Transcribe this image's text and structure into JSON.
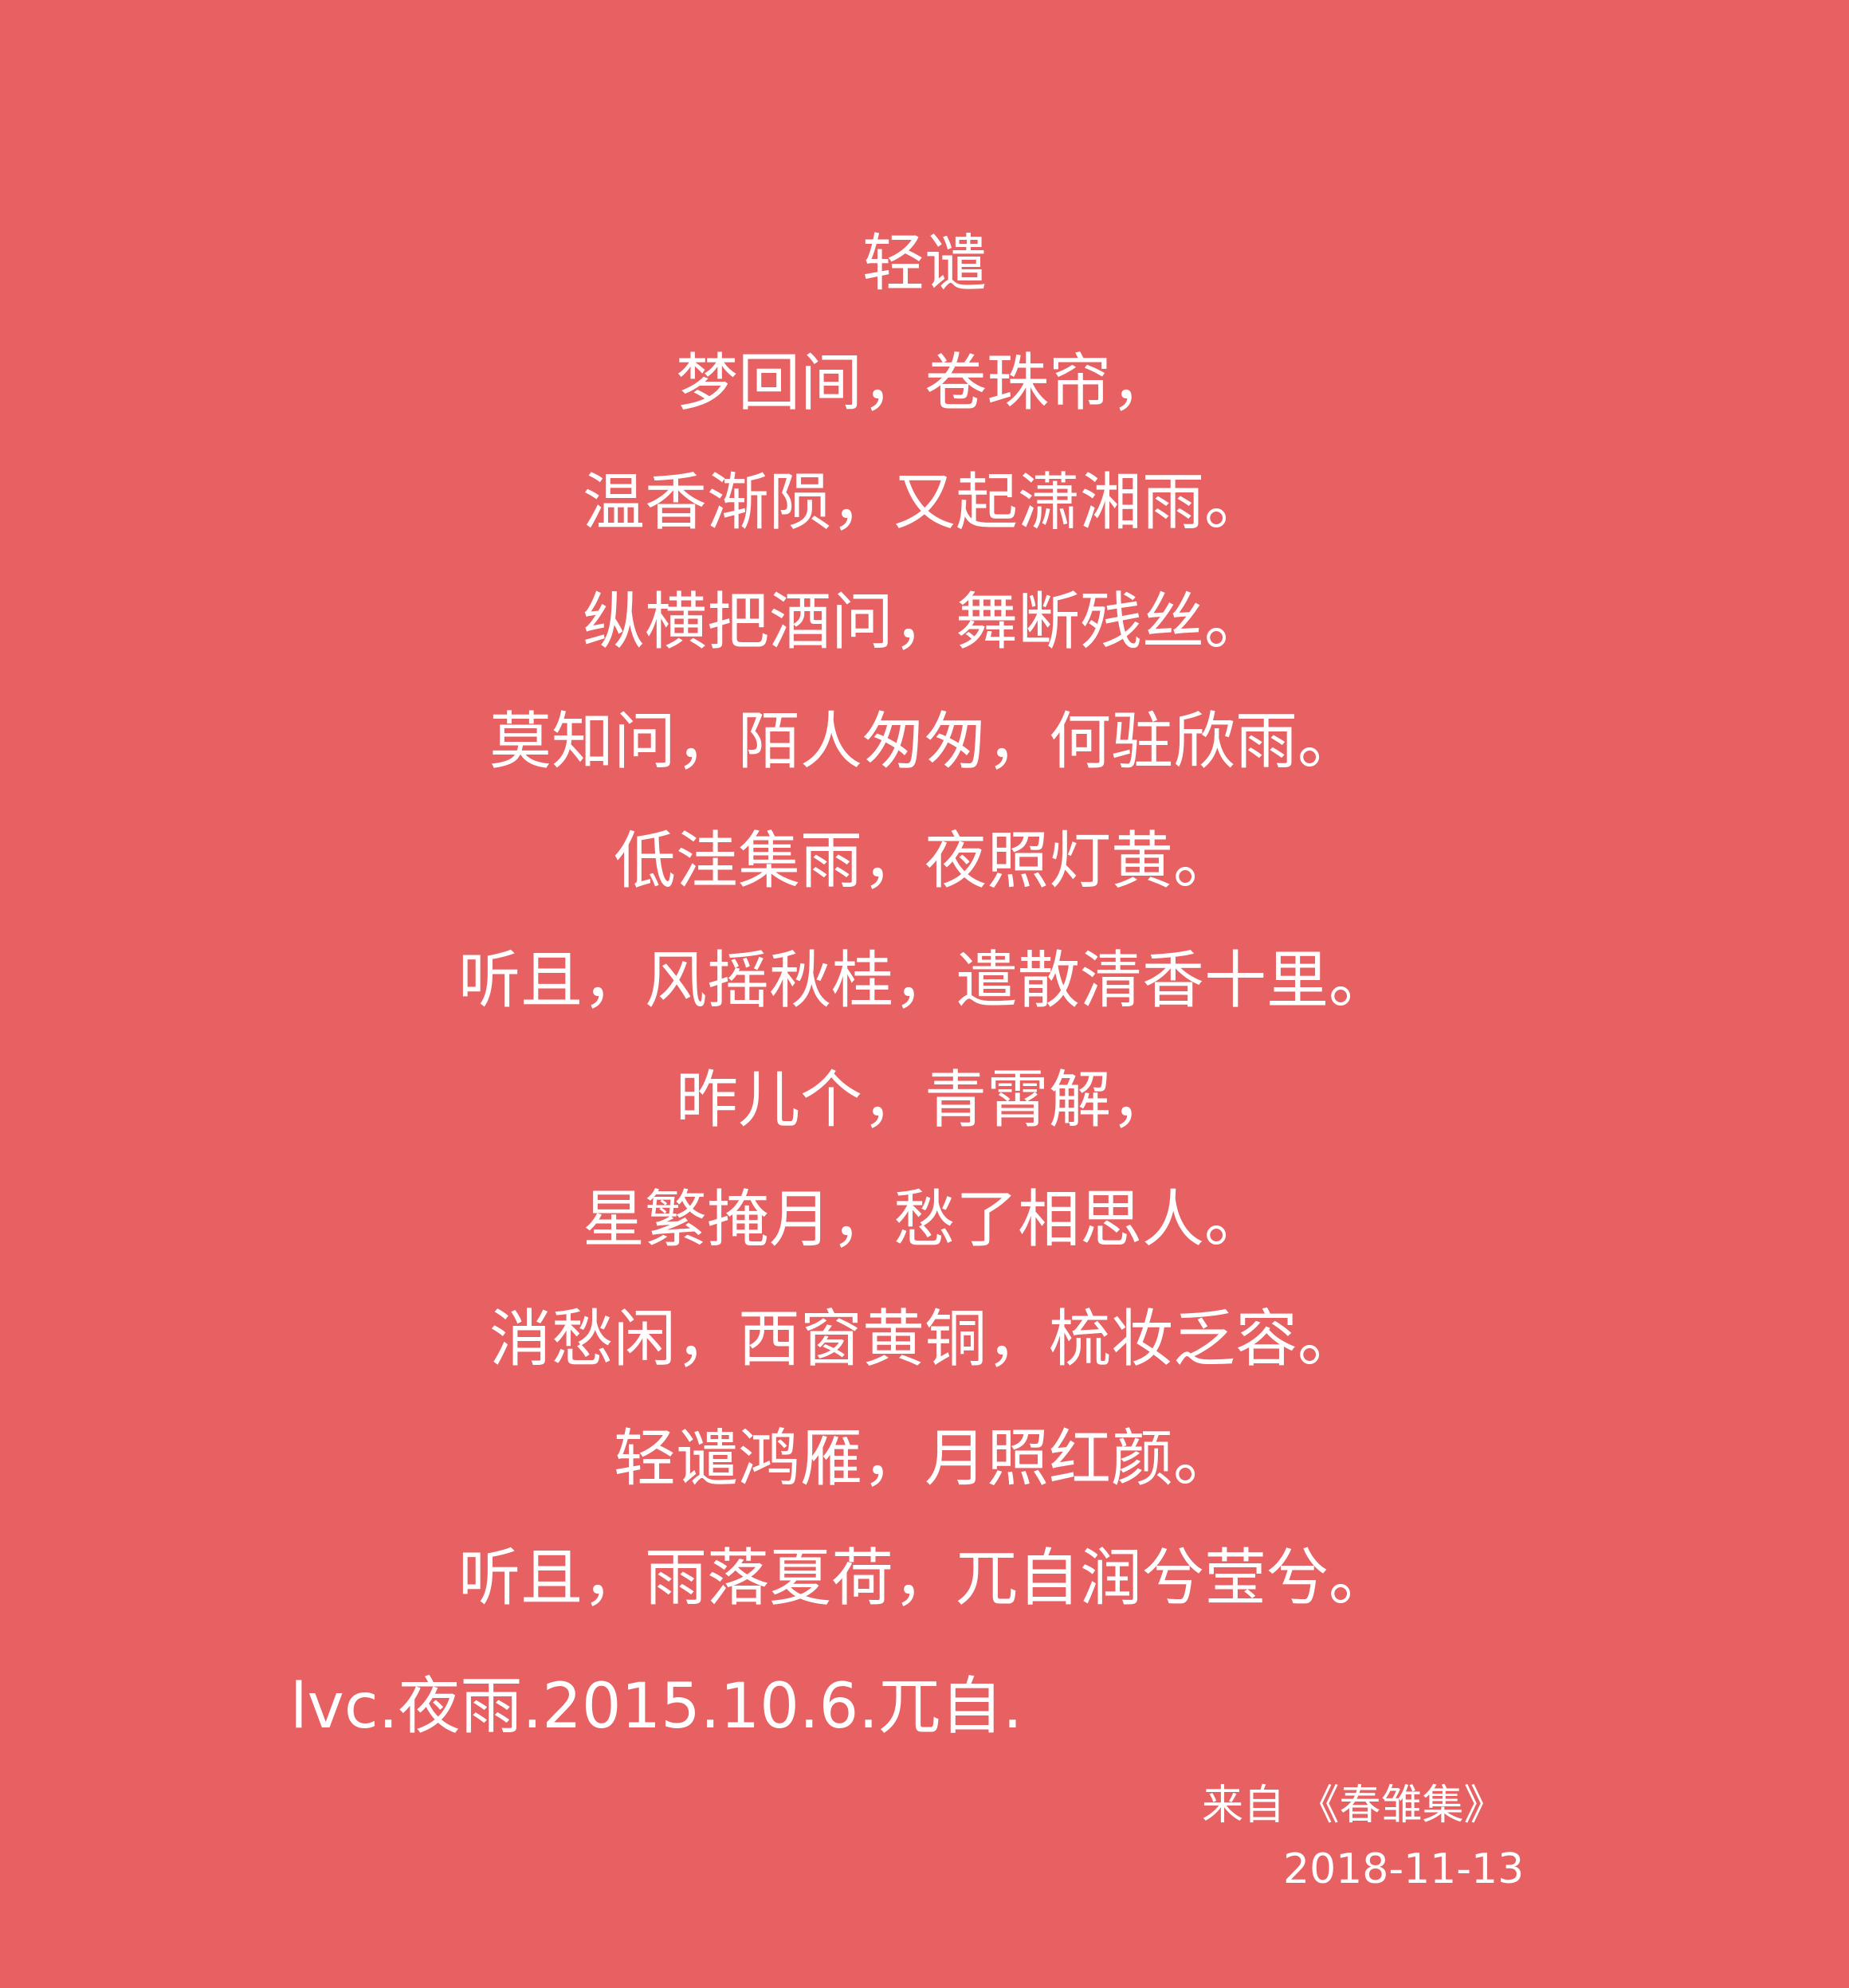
{
  "title": "轻谴",
  "lines": [
    "梦回间，卷珠帘，",
    "温香渐陨，又起潇湘雨。",
    "纵横把酒问，舞断残丝。",
    "莫知问，陌人匆匆，何驻欣雨。",
    "低洼集雨，夜照灯黄。",
    "听且，风摇秋桂，遣散清香十里。",
    "昨儿个，青霄解，",
    "星繁掩月，愁了相思人。",
    "消愁闲，西窗黄铜，梳妆乏容。",
    "轻谴鸿雁，月照红颜。",
    "听且，雨落夏荷，兀自润兮莹兮。"
  ],
  "signature": "lvc.夜雨.2015.10.6.兀自.",
  "source": "来自 《春雏集》",
  "date": "2018-11-13"
}
